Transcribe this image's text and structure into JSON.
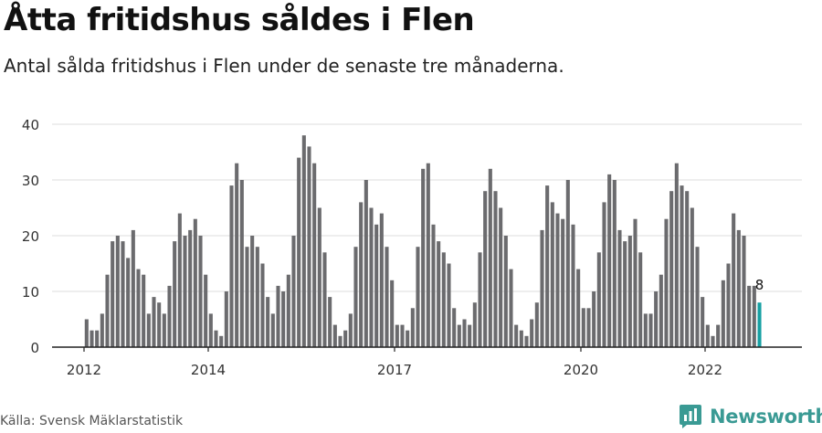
{
  "title": "Åtta fritidshus såldes i Flen",
  "subtitle": "Antal sålda fritidshus i Flen under de senaste tre månaderna.",
  "source": "Källa: Svensk Mäklarstatistik",
  "logo_text": "Newsworthy",
  "chart_data": {
    "type": "bar",
    "title": "",
    "xlabel": "",
    "ylabel": "",
    "ylim": [
      0,
      40
    ],
    "yticks": [
      0,
      10,
      20,
      30,
      40
    ],
    "x_start": "2012-01",
    "x_end": "2023-01",
    "xtick_labels": [
      "2012",
      "2014",
      "2017",
      "2020",
      "2022"
    ],
    "xtick_dates": [
      "2012-01",
      "2014-01",
      "2017-01",
      "2020-01",
      "2022-01"
    ],
    "values": [
      5,
      3,
      3,
      6,
      13,
      19,
      20,
      19,
      16,
      21,
      14,
      13,
      6,
      9,
      8,
      6,
      11,
      19,
      24,
      20,
      21,
      23,
      20,
      13,
      6,
      3,
      2,
      10,
      29,
      33,
      30,
      18,
      20,
      18,
      15,
      9,
      6,
      11,
      10,
      13,
      20,
      34,
      38,
      36,
      33,
      25,
      17,
      9,
      4,
      2,
      3,
      6,
      18,
      26,
      30,
      25,
      22,
      24,
      18,
      12,
      4,
      4,
      3,
      7,
      18,
      32,
      33,
      22,
      19,
      17,
      15,
      7,
      4,
      5,
      4,
      8,
      17,
      28,
      32,
      28,
      25,
      20,
      14,
      4,
      3,
      2,
      5,
      8,
      21,
      29,
      26,
      24,
      23,
      30,
      22,
      14,
      7,
      7,
      10,
      17,
      26,
      31,
      30,
      21,
      19,
      20,
      23,
      17,
      6,
      6,
      10,
      13,
      23,
      28,
      33,
      29,
      28,
      25,
      18,
      9,
      4,
      2,
      4,
      12,
      15,
      24,
      21,
      20,
      11,
      11,
      8
    ],
    "last_label": "8",
    "bar_color": "#6b6b6e",
    "highlight_color": "#17a0a3",
    "grid": true
  }
}
